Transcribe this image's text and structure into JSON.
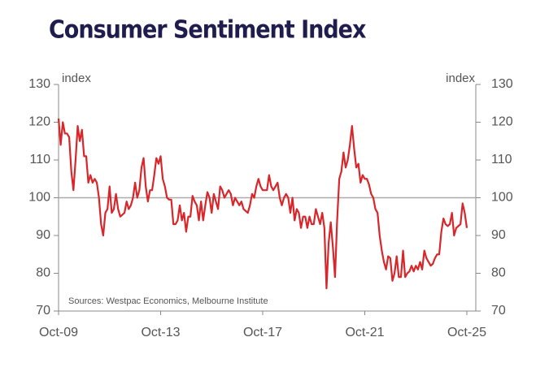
{
  "chart_data": {
    "type": "line",
    "title": "Consumer Sentiment Index",
    "ylabel": "index",
    "y2label": "index",
    "source": "Sources: Westpac Economics, Melbourne Institute",
    "categories": [
      "Oct-09",
      null,
      null,
      null,
      null,
      null,
      null,
      null,
      null,
      null,
      null,
      null,
      null,
      null,
      null,
      null,
      null,
      null,
      null,
      null,
      null,
      null,
      null,
      null,
      null,
      null,
      null,
      null,
      null,
      null,
      null,
      null,
      null,
      null,
      null,
      null,
      null,
      null,
      null,
      null,
      null,
      null,
      null,
      null,
      null,
      null,
      null,
      null,
      "Oct-13",
      null,
      null,
      null,
      null,
      null,
      null,
      null,
      null,
      null,
      null,
      null,
      null,
      null,
      null,
      null,
      null,
      null,
      null,
      null,
      null,
      null,
      null,
      null,
      null,
      null,
      null,
      null,
      null,
      null,
      null,
      null,
      null,
      null,
      null,
      null,
      null,
      null,
      null,
      null,
      null,
      null,
      null,
      null,
      null,
      null,
      null,
      null,
      "Oct-17",
      null,
      null,
      null,
      null,
      null,
      null,
      null,
      null,
      null,
      null,
      null,
      null,
      null,
      null,
      null,
      null,
      null,
      null,
      null,
      null,
      null,
      null,
      null,
      null,
      null,
      null,
      null,
      null,
      null,
      null,
      null,
      null,
      null,
      null,
      null,
      null,
      null,
      null,
      null,
      null,
      null,
      null,
      null,
      null,
      null,
      null,
      null,
      "Oct-21",
      null,
      null,
      null,
      null,
      null,
      null,
      null,
      null,
      null,
      null,
      null,
      null,
      null,
      null,
      null,
      null,
      null,
      null,
      null,
      null,
      null,
      null,
      null,
      null,
      null,
      null,
      null,
      null,
      null,
      null,
      null,
      null,
      null,
      null,
      null,
      null,
      null,
      null,
      null,
      null,
      null,
      null,
      null,
      null,
      null,
      null,
      null,
      "Oct-25"
    ],
    "series": [
      {
        "name": "Consumer Sentiment Index",
        "color": "#d9262a",
        "values": [
          121,
          114,
          120,
          117,
          117,
          116,
          107,
          102,
          110,
          119,
          115,
          118,
          111,
          111,
          104,
          106,
          104,
          105,
          104,
          100,
          93,
          90,
          96,
          97,
          103,
          96,
          97,
          101,
          97,
          95,
          95.5,
          96,
          99,
          97,
          98,
          100,
          104,
          100,
          102,
          108,
          110.5,
          103,
          99,
          102,
          102,
          106,
          110.5,
          109,
          111,
          105,
          103,
          100,
          99.5,
          99.5,
          93,
          93,
          94,
          98,
          94,
          96,
          91,
          95,
          95,
          100.5,
          99,
          98,
          94,
          99,
          94,
          98,
          101.5,
          100,
          96,
          101,
          99,
          97,
          103,
          102,
          100,
          101,
          102,
          101,
          98,
          100,
          99,
          98,
          99,
          97,
          96.5,
          96,
          98,
          101,
          100,
          103,
          105,
          103,
          102,
          102,
          102,
          106,
          103,
          102,
          103,
          104,
          100,
          98,
          100,
          101,
          100,
          96,
          100,
          94,
          97,
          96,
          92,
          95,
          95,
          92,
          95,
          93,
          93,
          97,
          95,
          93,
          96,
          92,
          76,
          88,
          93.5,
          87,
          79,
          94,
          105,
          107,
          112,
          108,
          110,
          114,
          119,
          113,
          108,
          109,
          104,
          106,
          105,
          105,
          103.5,
          101,
          100,
          97,
          96,
          90,
          86,
          83,
          81,
          84.5,
          84,
          78,
          80,
          84.5,
          79,
          79,
          86,
          79,
          80,
          80.5,
          82,
          80.5,
          82,
          81,
          83,
          81,
          86,
          84,
          83,
          82,
          82.5,
          84,
          85,
          85,
          91,
          94.5,
          93,
          92.5,
          93,
          96,
          90,
          92,
          92.5,
          93,
          98.5,
          96,
          92
        ]
      }
    ],
    "ylim": [
      70,
      130
    ],
    "yticks": [
      70,
      80,
      90,
      100,
      110,
      120,
      130
    ],
    "y2lim": [
      70,
      130
    ],
    "y2ticks": [
      70,
      80,
      90,
      100,
      110,
      120,
      130
    ],
    "hline": 100
  }
}
